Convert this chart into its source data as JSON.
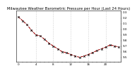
{
  "title": "Milwaukee Weather Barometric Pressure per Hour (Last 24 Hours)",
  "x_hours": [
    0,
    1,
    2,
    3,
    4,
    5,
    6,
    7,
    8,
    9,
    10,
    11,
    12,
    13,
    14,
    15,
    16,
    17,
    18,
    19,
    20,
    21,
    22,
    23
  ],
  "pressure": [
    30.22,
    30.15,
    30.08,
    29.98,
    29.9,
    29.88,
    29.82,
    29.75,
    29.7,
    29.65,
    29.6,
    29.58,
    29.55,
    29.52,
    29.5,
    29.52,
    29.55,
    29.58,
    29.62,
    29.65,
    29.68,
    29.72,
    29.7,
    29.68
  ],
  "line_color": "#dd0000",
  "marker_color": "#000000",
  "bg_color": "#ffffff",
  "grid_color": "#aaaaaa",
  "title_fontsize": 3.8,
  "tick_fontsize": 3.0,
  "ylim": [
    29.42,
    30.33
  ],
  "yticks": [
    29.5,
    29.6,
    29.7,
    29.8,
    29.9,
    30.0,
    30.1,
    30.2,
    30.3
  ],
  "ytick_labels": [
    "9.5",
    "9.6",
    "9.7",
    "9.8",
    "9.9",
    "0.0",
    "0.1",
    "0.2",
    "0.3"
  ],
  "xtick_step": 4,
  "vgrid_positions": [
    4,
    8,
    12,
    16,
    20
  ]
}
